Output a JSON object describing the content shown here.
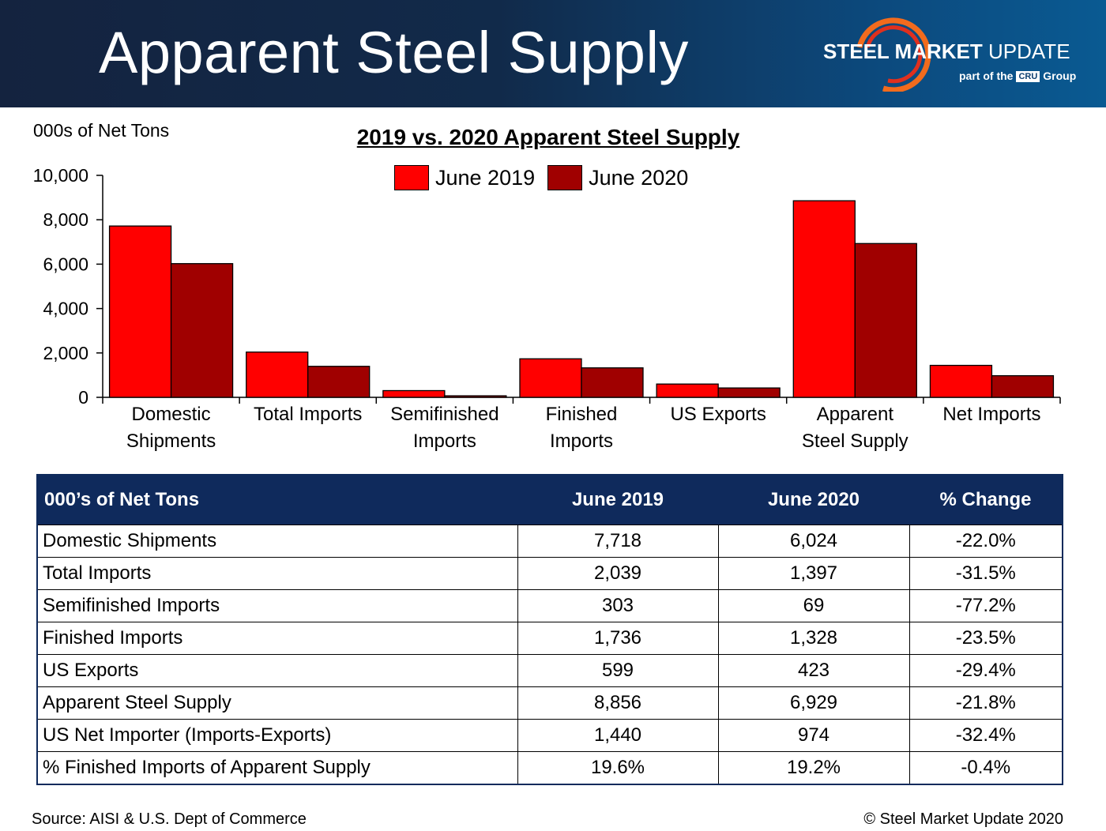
{
  "header": {
    "title": "Apparent Steel Supply",
    "logo_brand_bold": "STEEL MARKET",
    "logo_brand_light": "UPDATE",
    "logo_sub_prefix": "part of the",
    "logo_sub_box": "CRU",
    "logo_sub_suffix": "Group"
  },
  "units_label": "000s of Net Tons",
  "colors": {
    "june_2019": "#ff0000",
    "june_2020": "#a00000",
    "header_bg": "#14233f",
    "table_header": "#0f2a5c"
  },
  "chart_data": {
    "type": "bar",
    "title": "2019 vs. 2020 Apparent Steel Supply",
    "ylabel": "000s of Net Tons",
    "xlabel": "",
    "ylim": [
      0,
      10000
    ],
    "yticks": [
      "0",
      "2,000",
      "4,000",
      "6,000",
      "8,000",
      "10,000"
    ],
    "categories": [
      [
        "Domestic",
        "Shipments"
      ],
      [
        "Total Imports"
      ],
      [
        "Semifinished",
        "Imports"
      ],
      [
        "Finished",
        "Imports"
      ],
      [
        "US Exports"
      ],
      [
        "Apparent",
        "Steel Supply"
      ],
      [
        "Net Imports"
      ]
    ],
    "series": [
      {
        "name": "June 2019",
        "values": [
          7718,
          2039,
          303,
          1736,
          599,
          8856,
          1440
        ]
      },
      {
        "name": "June 2020",
        "values": [
          6024,
          1397,
          69,
          1328,
          423,
          6929,
          974
        ]
      }
    ],
    "legend": "top-center",
    "grid": false
  },
  "table": {
    "headers": [
      "000’s of Net Tons",
      "June 2019",
      "June 2020",
      "% Change"
    ],
    "rows": [
      [
        "Domestic Shipments",
        "7,718",
        "6,024",
        "-22.0%"
      ],
      [
        "Total Imports",
        "2,039",
        "1,397",
        "-31.5%"
      ],
      [
        "Semifinished Imports",
        "303",
        "69",
        "-77.2%"
      ],
      [
        "Finished Imports",
        "1,736",
        "1,328",
        "-23.5%"
      ],
      [
        "US Exports",
        "599",
        "423",
        "-29.4%"
      ],
      [
        "Apparent Steel Supply",
        "8,856",
        "6,929",
        "-21.8%"
      ],
      [
        "US Net Importer (Imports-Exports)",
        "1,440",
        "974",
        "-32.4%"
      ],
      [
        "% Finished Imports of Apparent Supply",
        "19.6%",
        "19.2%",
        "-0.4%"
      ]
    ]
  },
  "footer": {
    "source": "Source:  AISI & U.S. Dept of Commerce",
    "copyright": "©    Steel Market Update 2020"
  }
}
